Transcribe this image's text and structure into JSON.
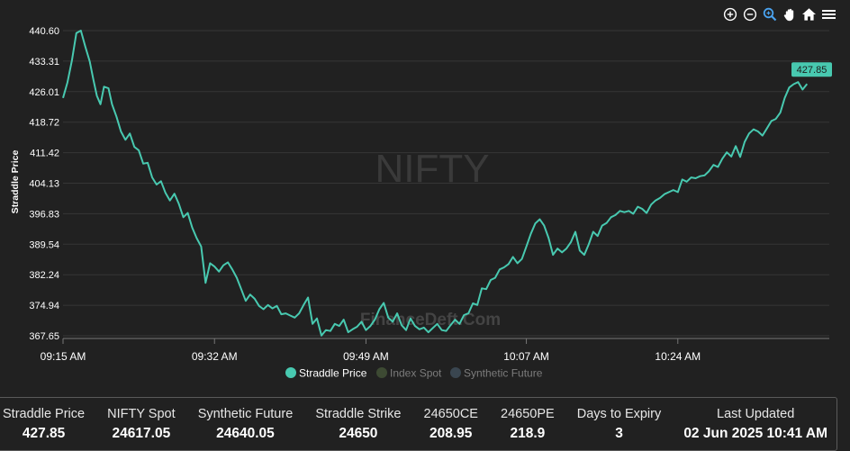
{
  "toolbar": {
    "icons": [
      "zoom-in-icon",
      "zoom-out-icon",
      "selection-zoom-icon",
      "pan-icon",
      "home-icon",
      "menu-icon"
    ]
  },
  "watermark": "NIFTY",
  "watermark2": "FinanceDeft.Com",
  "colors": {
    "background": "#212121",
    "straddle": "#48c9b0",
    "index_spot": "#3d4a33",
    "synthetic_future": "#3a4650",
    "grid": "#363636"
  },
  "chart_data": {
    "type": "line",
    "title": "",
    "xlabel": "",
    "ylabel": "Straddle Price",
    "y_ticks": [
      "440.60",
      "433.31",
      "426.01",
      "418.72",
      "411.42",
      "404.13",
      "396.83",
      "389.54",
      "382.24",
      "374.94",
      "367.65"
    ],
    "ylim": [
      367.65,
      440.6
    ],
    "x_ticks": [
      {
        "label": "09:15 AM",
        "minute": 0
      },
      {
        "label": "09:32 AM",
        "minute": 17
      },
      {
        "label": "09:49 AM",
        "minute": 34
      },
      {
        "label": "10:07 AM",
        "minute": 52
      },
      {
        "label": "10:24 AM",
        "minute": 69
      }
    ],
    "x_range_minutes": [
      0,
      86
    ],
    "grid": true,
    "legend_position": "bottom",
    "last_value_label": "427.85",
    "series": [
      {
        "name": "Straddle Price",
        "active": true,
        "points": [
          [
            0.0,
            424.5
          ],
          [
            0.5,
            428.2
          ],
          [
            1.0,
            433.5
          ],
          [
            1.5,
            440.0
          ],
          [
            2.0,
            440.6
          ],
          [
            2.5,
            436.8
          ],
          [
            3.0,
            433.2
          ],
          [
            3.4,
            429.0
          ],
          [
            3.8,
            425.0
          ],
          [
            4.2,
            423.0
          ],
          [
            4.6,
            427.2
          ],
          [
            5.1,
            426.8
          ],
          [
            5.5,
            423.0
          ],
          [
            6.0,
            420.0
          ],
          [
            6.5,
            416.5
          ],
          [
            7.0,
            414.5
          ],
          [
            7.5,
            416.0
          ],
          [
            8.0,
            412.8
          ],
          [
            8.5,
            412.0
          ],
          [
            9.0,
            408.8
          ],
          [
            9.5,
            409.0
          ],
          [
            10.0,
            405.5
          ],
          [
            10.5,
            403.8
          ],
          [
            11.0,
            404.6
          ],
          [
            11.5,
            401.8
          ],
          [
            12.0,
            400.0
          ],
          [
            12.5,
            401.6
          ],
          [
            13.0,
            399.2
          ],
          [
            13.5,
            396.0
          ],
          [
            14.0,
            397.0
          ],
          [
            14.5,
            393.5
          ],
          [
            15.0,
            391.0
          ],
          [
            15.5,
            389.0
          ],
          [
            16.0,
            380.3
          ],
          [
            16.5,
            385.0
          ],
          [
            17.0,
            384.2
          ],
          [
            17.5,
            383.0
          ],
          [
            18.0,
            384.5
          ],
          [
            18.5,
            385.2
          ],
          [
            19.0,
            383.5
          ],
          [
            19.5,
            381.5
          ],
          [
            20.0,
            378.8
          ],
          [
            20.5,
            376.0
          ],
          [
            21.0,
            377.5
          ],
          [
            21.5,
            376.5
          ],
          [
            22.0,
            374.8
          ],
          [
            22.5,
            374.0
          ],
          [
            23.0,
            375.0
          ],
          [
            23.5,
            374.2
          ],
          [
            24.0,
            374.8
          ],
          [
            24.5,
            372.8
          ],
          [
            25.0,
            373.0
          ],
          [
            25.5,
            372.5
          ],
          [
            26.0,
            372.0
          ],
          [
            26.5,
            373.0
          ],
          [
            27.0,
            375.0
          ],
          [
            27.5,
            376.8
          ],
          [
            28.0,
            370.5
          ],
          [
            28.5,
            371.8
          ],
          [
            29.0,
            367.7
          ],
          [
            29.5,
            369.0
          ],
          [
            30.0,
            368.8
          ],
          [
            30.5,
            370.5
          ],
          [
            31.0,
            370.0
          ],
          [
            31.5,
            371.5
          ],
          [
            32.0,
            368.5
          ],
          [
            32.5,
            369.2
          ],
          [
            33.0,
            369.8
          ],
          [
            33.5,
            371.0
          ],
          [
            34.0,
            369.0
          ],
          [
            34.5,
            370.0
          ],
          [
            35.0,
            371.5
          ],
          [
            35.5,
            374.0
          ],
          [
            36.0,
            375.5
          ],
          [
            36.5,
            372.0
          ],
          [
            37.0,
            371.0
          ],
          [
            37.5,
            373.0
          ],
          [
            38.0,
            370.2
          ],
          [
            38.5,
            369.0
          ],
          [
            39.0,
            371.8
          ],
          [
            39.5,
            370.0
          ],
          [
            40.0,
            369.2
          ],
          [
            40.5,
            369.6
          ],
          [
            41.0,
            368.5
          ],
          [
            41.5,
            369.5
          ],
          [
            42.0,
            370.5
          ],
          [
            42.5,
            369.0
          ],
          [
            43.0,
            368.8
          ],
          [
            43.5,
            370.2
          ],
          [
            44.0,
            371.5
          ],
          [
            44.5,
            370.5
          ],
          [
            45.0,
            372.6
          ],
          [
            45.5,
            373.0
          ],
          [
            46.0,
            375.4
          ],
          [
            46.5,
            375.0
          ],
          [
            47.0,
            379.0
          ],
          [
            47.5,
            378.8
          ],
          [
            48.0,
            381.0
          ],
          [
            48.5,
            381.5
          ],
          [
            49.0,
            383.5
          ],
          [
            49.5,
            384.0
          ],
          [
            50.0,
            384.8
          ],
          [
            50.5,
            386.5
          ],
          [
            51.0,
            385.0
          ],
          [
            51.5,
            386.0
          ],
          [
            52.0,
            389.0
          ],
          [
            52.5,
            392.0
          ],
          [
            53.0,
            394.5
          ],
          [
            53.5,
            395.5
          ],
          [
            54.0,
            394.0
          ],
          [
            54.5,
            391.0
          ],
          [
            55.0,
            387.0
          ],
          [
            55.5,
            388.5
          ],
          [
            56.0,
            387.6
          ],
          [
            56.5,
            388.5
          ],
          [
            57.0,
            390.0
          ],
          [
            57.5,
            392.5
          ],
          [
            58.0,
            388.0
          ],
          [
            58.5,
            387.0
          ],
          [
            59.0,
            389.5
          ],
          [
            59.5,
            392.5
          ],
          [
            60.0,
            391.5
          ],
          [
            60.5,
            394.0
          ],
          [
            61.0,
            394.6
          ],
          [
            61.5,
            396.0
          ],
          [
            62.0,
            396.5
          ],
          [
            62.5,
            397.5
          ],
          [
            63.0,
            397.2
          ],
          [
            63.5,
            397.5
          ],
          [
            64.0,
            396.8
          ],
          [
            64.5,
            398.5
          ],
          [
            65.0,
            398.0
          ],
          [
            65.5,
            397.0
          ],
          [
            66.0,
            399.0
          ],
          [
            66.5,
            400.0
          ],
          [
            67.0,
            400.6
          ],
          [
            67.5,
            401.5
          ],
          [
            68.0,
            402.0
          ],
          [
            68.5,
            402.5
          ],
          [
            69.0,
            402.0
          ],
          [
            69.5,
            405.0
          ],
          [
            70.0,
            404.5
          ],
          [
            70.5,
            405.5
          ],
          [
            71.0,
            405.3
          ],
          [
            71.5,
            405.8
          ],
          [
            72.0,
            406.0
          ],
          [
            72.5,
            407.0
          ],
          [
            73.0,
            408.5
          ],
          [
            73.5,
            408.0
          ],
          [
            74.0,
            410.0
          ],
          [
            74.5,
            411.5
          ],
          [
            75.0,
            410.5
          ],
          [
            75.5,
            413.0
          ],
          [
            76.0,
            410.4
          ],
          [
            76.5,
            414.0
          ],
          [
            77.0,
            416.0
          ],
          [
            77.5,
            417.0
          ],
          [
            78.0,
            416.5
          ],
          [
            78.5,
            415.5
          ],
          [
            79.0,
            417.2
          ],
          [
            79.5,
            419.0
          ],
          [
            80.0,
            419.5
          ],
          [
            80.5,
            421.0
          ],
          [
            81.0,
            424.5
          ],
          [
            81.5,
            427.0
          ],
          [
            82.0,
            427.8
          ],
          [
            82.5,
            428.3
          ],
          [
            83.0,
            426.5
          ],
          [
            83.5,
            427.85
          ]
        ]
      },
      {
        "name": "Index Spot",
        "active": false,
        "points": []
      },
      {
        "name": "Synthetic Future",
        "active": false,
        "points": []
      }
    ]
  },
  "stats": [
    {
      "label": "Straddle Price",
      "value": "427.85"
    },
    {
      "label": "NIFTY Spot",
      "value": "24617.05"
    },
    {
      "label": "Synthetic Future",
      "value": "24640.05"
    },
    {
      "label": "Straddle Strike",
      "value": "24650"
    },
    {
      "label": "24650CE",
      "value": "208.95"
    },
    {
      "label": "24650PE",
      "value": "218.9"
    },
    {
      "label": "Days to Expiry",
      "value": "3"
    },
    {
      "label": "Last Updated",
      "value": "02 Jun 2025 10:41 AM"
    }
  ]
}
